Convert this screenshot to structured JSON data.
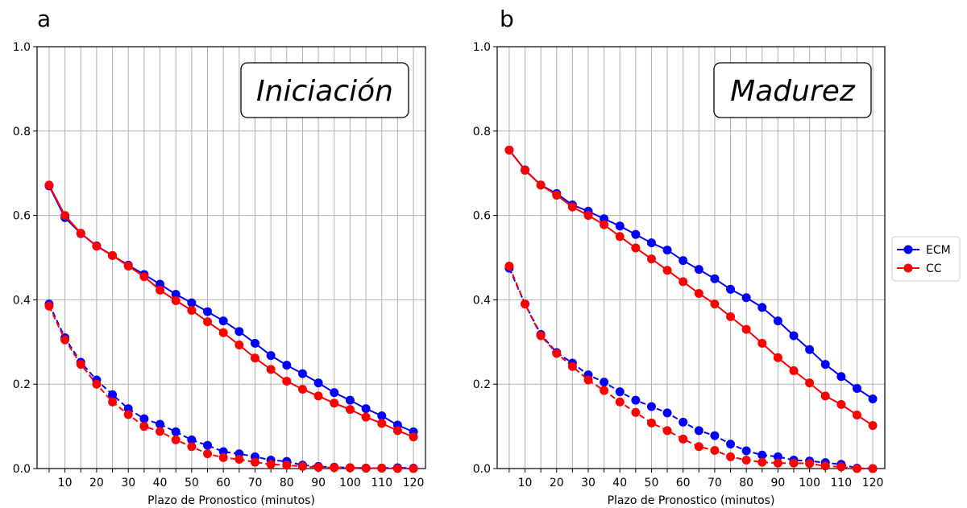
{
  "chart_data": [
    {
      "type": "line",
      "panel_label": "a",
      "annotation": "Iniciación",
      "xlabel": "Plazo de Pronostico (minutos)",
      "ylabel": "",
      "ylim": [
        0,
        1.0
      ],
      "yticks": [
        "0.0",
        "0.2",
        "0.4",
        "0.6",
        "0.8",
        "1.0"
      ],
      "xticks": [
        10,
        20,
        30,
        40,
        50,
        60,
        70,
        80,
        90,
        100,
        110,
        120
      ],
      "grid": true,
      "x": [
        5,
        10,
        15,
        20,
        25,
        30,
        35,
        40,
        45,
        50,
        55,
        60,
        65,
        70,
        75,
        80,
        85,
        90,
        95,
        100,
        105,
        110,
        115,
        120
      ],
      "series": [
        {
          "name": "ECM",
          "color": "#0000ff",
          "style": "solid",
          "values": [
            0.67,
            0.595,
            0.557,
            0.528,
            0.505,
            0.482,
            0.46,
            0.437,
            0.413,
            0.393,
            0.372,
            0.35,
            0.325,
            0.297,
            0.268,
            0.245,
            0.225,
            0.203,
            0.18,
            0.162,
            0.142,
            0.125,
            0.103,
            0.087
          ]
        },
        {
          "color": "#ff0000",
          "style": "solid",
          "values": [
            0.672,
            0.6,
            0.558,
            0.527,
            0.505,
            0.48,
            0.455,
            0.423,
            0.398,
            0.375,
            0.348,
            0.322,
            0.293,
            0.262,
            0.235,
            0.207,
            0.188,
            0.172,
            0.155,
            0.14,
            0.122,
            0.107,
            0.09,
            0.075
          ]
        },
        {
          "color": "#0000ff",
          "style": "dashed",
          "values": [
            0.39,
            0.31,
            0.252,
            0.21,
            0.175,
            0.142,
            0.118,
            0.105,
            0.087,
            0.068,
            0.055,
            0.04,
            0.035,
            0.028,
            0.02,
            0.017,
            0.008,
            0.005,
            0.003,
            0.002,
            0.001,
            0.001,
            0.002,
            0.001
          ]
        },
        {
          "name": "CC",
          "color": "#ff0000",
          "style": "dashed",
          "values": [
            0.385,
            0.305,
            0.247,
            0.2,
            0.158,
            0.128,
            0.1,
            0.088,
            0.068,
            0.052,
            0.035,
            0.026,
            0.022,
            0.015,
            0.01,
            0.008,
            0.005,
            0.003,
            0.002,
            0.002,
            0.001,
            0.001,
            0.0,
            0.0
          ]
        }
      ]
    },
    {
      "type": "line",
      "panel_label": "b",
      "annotation": "Madurez",
      "xlabel": "Plazo de Pronostico (minutos)",
      "ylabel": "",
      "ylim": [
        0,
        1.0
      ],
      "yticks": [
        "0.0",
        "0.2",
        "0.4",
        "0.6",
        "0.8",
        "1.0"
      ],
      "xticks": [
        10,
        20,
        30,
        40,
        50,
        60,
        70,
        80,
        90,
        100,
        110,
        120
      ],
      "grid": true,
      "x": [
        5,
        10,
        15,
        20,
        25,
        30,
        35,
        40,
        45,
        50,
        55,
        60,
        65,
        70,
        75,
        80,
        85,
        90,
        95,
        100,
        105,
        110,
        115,
        120
      ],
      "series": [
        {
          "name": "ECM",
          "color": "#0000ff",
          "style": "solid",
          "values": [
            0.755,
            0.708,
            0.672,
            0.652,
            0.625,
            0.61,
            0.592,
            0.575,
            0.555,
            0.535,
            0.518,
            0.493,
            0.472,
            0.45,
            0.425,
            0.405,
            0.382,
            0.35,
            0.315,
            0.282,
            0.247,
            0.218,
            0.19,
            0.165
          ]
        },
        {
          "color": "#ff0000",
          "style": "solid",
          "values": [
            0.755,
            0.707,
            0.672,
            0.648,
            0.62,
            0.6,
            0.578,
            0.55,
            0.523,
            0.497,
            0.47,
            0.443,
            0.415,
            0.39,
            0.36,
            0.33,
            0.297,
            0.263,
            0.232,
            0.203,
            0.172,
            0.152,
            0.127,
            0.102
          ]
        },
        {
          "color": "#0000ff",
          "style": "dashed",
          "values": [
            0.475,
            0.39,
            0.318,
            0.275,
            0.25,
            0.222,
            0.205,
            0.182,
            0.162,
            0.147,
            0.132,
            0.11,
            0.09,
            0.078,
            0.058,
            0.042,
            0.032,
            0.028,
            0.02,
            0.018,
            0.014,
            0.01,
            0.001,
            0.0
          ]
        },
        {
          "name": "CC",
          "color": "#ff0000",
          "style": "dashed",
          "values": [
            0.48,
            0.39,
            0.315,
            0.273,
            0.242,
            0.21,
            0.185,
            0.158,
            0.133,
            0.108,
            0.09,
            0.07,
            0.052,
            0.043,
            0.028,
            0.02,
            0.015,
            0.013,
            0.013,
            0.012,
            0.006,
            0.004,
            0.0,
            0.0
          ]
        }
      ]
    }
  ],
  "legend": {
    "placement": "right",
    "entries": [
      {
        "label": "ECM",
        "color": "#0000ff"
      },
      {
        "label": "CC",
        "color": "#ff0000"
      }
    ]
  }
}
